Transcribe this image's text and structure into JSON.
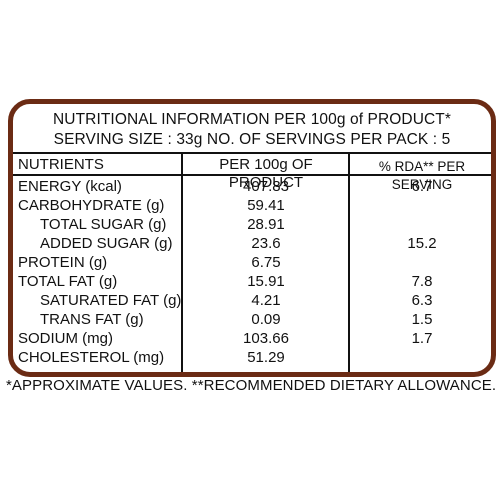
{
  "title_line1": "NUTRITIONAL INFORMATION PER 100g of PRODUCT*",
  "title_line2": "SERVING SIZE : 33g  NO. OF SERVINGS PER PACK : 5",
  "headers": {
    "nutrients": "NUTRIENTS",
    "per100g": "PER 100g OF PRODUCT",
    "rda": "% RDA** PER SERVING"
  },
  "rows": [
    {
      "name": "ENERGY (kcal)",
      "value": "407.83",
      "rda": "6.7",
      "indent": false
    },
    {
      "name": "CARBOHYDRATE (g)",
      "value": "59.41",
      "rda": "",
      "indent": false
    },
    {
      "name": "TOTAL SUGAR (g)",
      "value": "28.91",
      "rda": "",
      "indent": true
    },
    {
      "name": "ADDED SUGAR (g)",
      "value": "23.6",
      "rda": "15.2",
      "indent": true
    },
    {
      "name": "PROTEIN (g)",
      "value": "6.75",
      "rda": "",
      "indent": false
    },
    {
      "name": "TOTAL FAT (g)",
      "value": "15.91",
      "rda": "7.8",
      "indent": false
    },
    {
      "name": "SATURATED FAT (g)",
      "value": "4.21",
      "rda": "6.3",
      "indent": true
    },
    {
      "name": "TRANS FAT (g)",
      "value": "0.09",
      "rda": "1.5",
      "indent": true
    },
    {
      "name": "SODIUM (mg)",
      "value": "103.66",
      "rda": "1.7",
      "indent": false
    },
    {
      "name": "CHOLESTEROL (mg)",
      "value": "51.29",
      "rda": "",
      "indent": false
    }
  ],
  "footnote": "*APPROXIMATE VALUES.  **RECOMMENDED DIETARY ALLOWANCE.",
  "colors": {
    "border": "#6b2b14",
    "text": "#111111"
  }
}
